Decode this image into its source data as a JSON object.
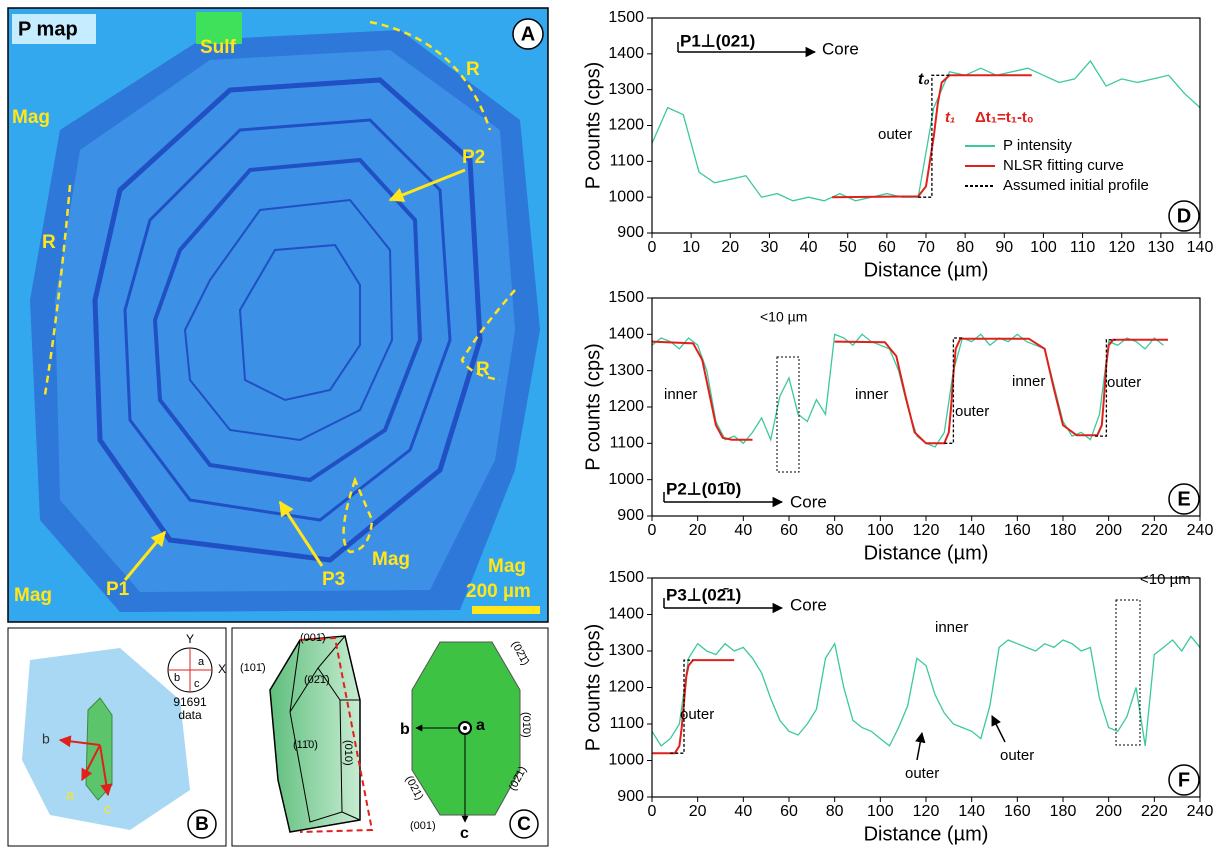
{
  "panel_a": {
    "letter": "A",
    "title": "P map",
    "labels": [
      "Sulf",
      "Mag",
      "R",
      "P2",
      "R",
      "R",
      "P1",
      "P3",
      "Mag",
      "Mag",
      "Mag"
    ],
    "scale_bar": "200 µm"
  },
  "panel_b": {
    "letter": "B",
    "axes": [
      "Y",
      "X",
      "a",
      "b",
      "c"
    ],
    "sample": "91691",
    "sample_note": "data",
    "arrows": [
      "b",
      "a",
      "c"
    ]
  },
  "panel_c": {
    "letter": "C",
    "faces_left": [
      "(001̄)",
      "(101̄)",
      "(02̄1̄)",
      "(11̄0)",
      "(010)"
    ],
    "faces_right": [
      "(02̄1̄)",
      "(01̄0)",
      "(02̄1)",
      "(021)",
      "(001)"
    ],
    "axes": [
      "b",
      "a",
      "c"
    ]
  },
  "chart_data": [
    {
      "type": "line",
      "letter": "D",
      "xlabel": "Distance (µm)",
      "ylabel": "P counts (cps)",
      "xlim": [
        0,
        140
      ],
      "xticks": [
        0,
        10,
        20,
        30,
        40,
        50,
        60,
        70,
        80,
        90,
        100,
        110,
        120,
        130,
        140
      ],
      "ylim": [
        900,
        1500
      ],
      "yticks": [
        900,
        1000,
        1100,
        1200,
        1300,
        1400,
        1500
      ],
      "legend": "right",
      "annotations": [
        {
          "text": "P1⊥(021)"
        },
        {
          "text": "Core"
        },
        {
          "text": "t₀"
        },
        {
          "text": "outer"
        },
        {
          "text": "t₁",
          "color": "#e0201b"
        },
        {
          "text": "Δt₁=t₁-t₀",
          "color": "#e0201b"
        }
      ],
      "series": [
        {
          "name": "P intensity",
          "color": "#3cc99a",
          "x": [
            0,
            4,
            8,
            12,
            16,
            20,
            24,
            28,
            32,
            36,
            40,
            44,
            48,
            52,
            56,
            60,
            64,
            68,
            72,
            76,
            80,
            84,
            88,
            92,
            96,
            100,
            104,
            108,
            112,
            116,
            120,
            124,
            128,
            132,
            136,
            140
          ],
          "values": [
            1150,
            1250,
            1230,
            1070,
            1040,
            1050,
            1060,
            1000,
            1010,
            990,
            1000,
            990,
            1010,
            990,
            1000,
            1010,
            1000,
            1000,
            1250,
            1350,
            1340,
            1360,
            1340,
            1350,
            1360,
            1340,
            1320,
            1330,
            1380,
            1310,
            1330,
            1320,
            1330,
            1340,
            1290,
            1250
          ]
        },
        {
          "name": "NLSR fitting curve",
          "color": "#e0201b",
          "x": [
            46,
            68,
            70,
            71,
            72,
            73,
            74,
            76,
            97
          ],
          "values": [
            1000,
            1002,
            1030,
            1100,
            1170,
            1260,
            1320,
            1340,
            1340
          ]
        },
        {
          "name": "Assumed initial profile",
          "color": "#000000",
          "dashed": true,
          "x": [
            68,
            71.5,
            71.5,
            76
          ],
          "values": [
            1000,
            1000,
            1340,
            1340
          ]
        }
      ]
    },
    {
      "type": "line",
      "letter": "E",
      "xlabel": "Distance (µm)",
      "ylabel": "P counts (cps)",
      "xlim": [
        0,
        240
      ],
      "xticks": [
        0,
        20,
        40,
        60,
        80,
        100,
        120,
        140,
        160,
        180,
        200,
        220,
        240
      ],
      "ylim": [
        900,
        1500
      ],
      "yticks": [
        900,
        1000,
        1100,
        1200,
        1300,
        1400,
        1500
      ],
      "annotations": [
        {
          "text": "<10 µm"
        },
        {
          "text": "inner"
        },
        {
          "text": "inner"
        },
        {
          "text": "outer"
        },
        {
          "text": "inner"
        },
        {
          "text": "outer"
        },
        {
          "text": "P2⊥(01̄0)"
        },
        {
          "text": "Core"
        }
      ],
      "series": [
        {
          "color": "#3cc99a",
          "x": [
            0,
            4,
            8,
            12,
            16,
            20,
            24,
            28,
            32,
            36,
            40,
            44,
            48,
            52,
            56,
            60,
            64,
            68,
            72,
            76,
            80,
            84,
            88,
            92,
            96,
            100,
            104,
            108,
            112,
            116,
            120,
            124,
            128,
            132,
            136,
            140,
            144,
            148,
            152,
            156,
            160,
            164,
            168,
            172,
            176,
            180,
            184,
            188,
            192,
            196,
            200,
            204,
            208,
            212,
            216,
            220,
            224
          ],
          "values": [
            1370,
            1390,
            1380,
            1360,
            1390,
            1370,
            1300,
            1160,
            1110,
            1120,
            1100,
            1130,
            1170,
            1110,
            1230,
            1280,
            1180,
            1160,
            1220,
            1180,
            1400,
            1390,
            1370,
            1400,
            1380,
            1370,
            1360,
            1300,
            1200,
            1120,
            1100,
            1090,
            1130,
            1300,
            1390,
            1380,
            1400,
            1370,
            1390,
            1380,
            1400,
            1380,
            1370,
            1360,
            1260,
            1160,
            1120,
            1130,
            1110,
            1180,
            1380,
            1370,
            1390,
            1380,
            1360,
            1390,
            1370
          ]
        },
        {
          "color": "#e0201b",
          "x": [
            0,
            18,
            22,
            25,
            28,
            31,
            35,
            44,
            62,
            80,
            102,
            107,
            111,
            115,
            120,
            128,
            130,
            131,
            132,
            133,
            135,
            165,
            172,
            176,
            180,
            186,
            195,
            197,
            198,
            199,
            200,
            202,
            226
          ],
          "values": [
            1380,
            1375,
            1330,
            1240,
            1150,
            1115,
            1110,
            1110,
            null,
            1380,
            1378,
            1340,
            1230,
            1130,
            1100,
            1100,
            1130,
            1200,
            1290,
            1360,
            1388,
            1388,
            1360,
            1250,
            1150,
            1122,
            1122,
            1150,
            1230,
            1320,
            1370,
            1385,
            1385
          ]
        },
        {
          "color": "#000000",
          "dashed": true,
          "x": [
            128,
            132,
            132,
            136,
            166,
            194,
            199,
            199,
            203
          ],
          "values": [
            1100,
            1100,
            1390,
            1390,
            null,
            1120,
            1120,
            1385,
            1385
          ]
        }
      ]
    },
    {
      "type": "line",
      "letter": "F",
      "xlabel": "Distance (µm)",
      "ylabel": "P counts (cps)",
      "xlim": [
        0,
        240
      ],
      "xticks": [
        0,
        20,
        40,
        60,
        80,
        100,
        120,
        140,
        160,
        180,
        200,
        220,
        240
      ],
      "ylim": [
        900,
        1500
      ],
      "yticks": [
        900,
        1000,
        1100,
        1200,
        1300,
        1400,
        1500
      ],
      "annotations": [
        {
          "text": "P3⊥(02̄1)"
        },
        {
          "text": "Core"
        },
        {
          "text": "outer"
        },
        {
          "text": "inner"
        },
        {
          "text": "outer"
        },
        {
          "text": "outer"
        },
        {
          "text": "<10 µm"
        }
      ],
      "series": [
        {
          "color": "#3cc99a",
          "x": [
            0,
            4,
            8,
            12,
            16,
            20,
            24,
            28,
            32,
            36,
            40,
            44,
            48,
            52,
            56,
            60,
            64,
            68,
            72,
            76,
            80,
            84,
            88,
            92,
            96,
            100,
            104,
            108,
            112,
            116,
            120,
            124,
            128,
            132,
            136,
            140,
            144,
            148,
            152,
            156,
            160,
            164,
            168,
            172,
            176,
            180,
            184,
            188,
            192,
            196,
            200,
            204,
            208,
            212,
            216,
            220,
            224,
            228,
            232,
            236,
            240
          ],
          "values": [
            1080,
            1040,
            1060,
            1100,
            1280,
            1320,
            1300,
            1290,
            1320,
            1300,
            1310,
            1280,
            1240,
            1170,
            1110,
            1080,
            1070,
            1100,
            1140,
            1280,
            1320,
            1200,
            1110,
            1090,
            1080,
            1060,
            1040,
            1090,
            1150,
            1280,
            1260,
            1180,
            1130,
            1100,
            1090,
            1080,
            1060,
            1150,
            1310,
            1330,
            1320,
            1310,
            1300,
            1320,
            1310,
            1330,
            1320,
            1300,
            1310,
            1170,
            1090,
            1080,
            1120,
            1200,
            1040,
            1290,
            1310,
            1330,
            1300,
            1340,
            1310
          ]
        },
        {
          "color": "#e0201b",
          "x": [
            0,
            10,
            12,
            13,
            14,
            15,
            16,
            18,
            36
          ],
          "values": [
            1020,
            1020,
            1040,
            1090,
            1160,
            1230,
            1260,
            1275,
            1275
          ]
        },
        {
          "color": "#000000",
          "dashed": true,
          "x": [
            8,
            14,
            14,
            18
          ],
          "values": [
            1020,
            1020,
            1275,
            1275
          ]
        }
      ]
    }
  ]
}
